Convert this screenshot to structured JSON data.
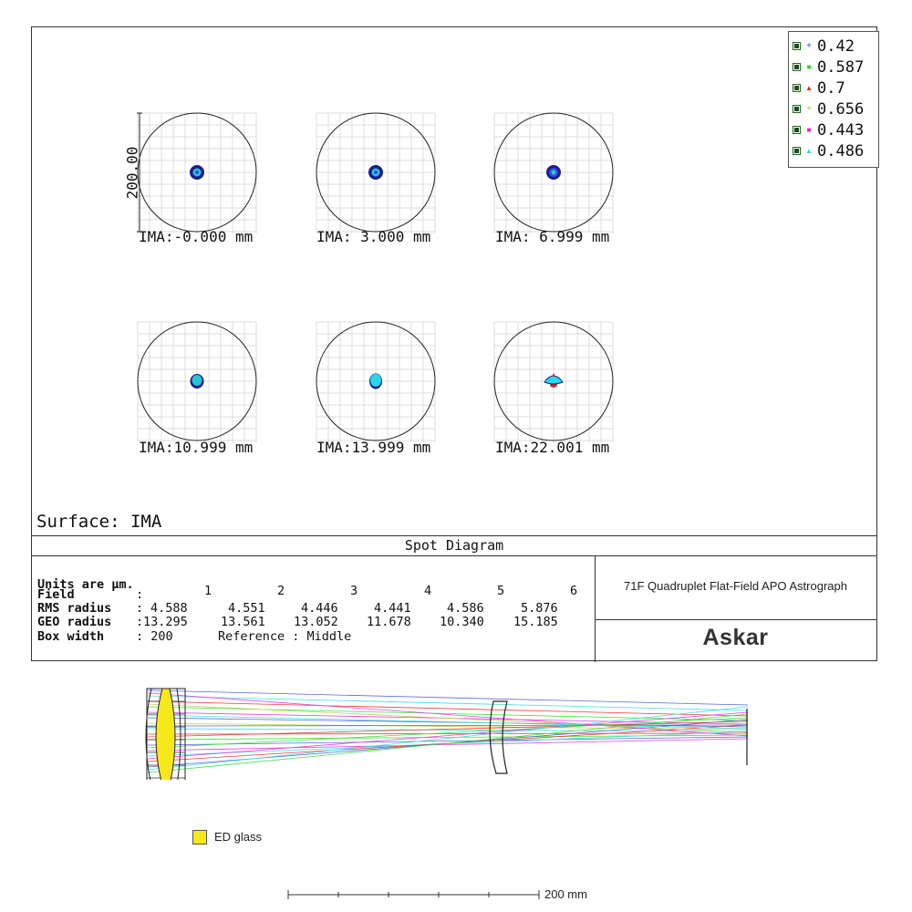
{
  "legend": [
    {
      "mark": "+",
      "color": "#3b4fd6",
      "label": "0.42"
    },
    {
      "mark": "■",
      "color": "#22dd22",
      "label": "0.587"
    },
    {
      "mark": "▲",
      "color": "#e02020",
      "label": "0.7"
    },
    {
      "mark": "+",
      "color": "#b9c93a",
      "label": "0.656"
    },
    {
      "mark": "■",
      "color": "#e020e0",
      "label": "0.443"
    },
    {
      "mark": "▲",
      "color": "#20d8e0",
      "label": "0.486"
    }
  ],
  "scale_bar_label": "200.00",
  "fields": [
    {
      "label": "IMA:-0.000 mm"
    },
    {
      "label": "IMA: 3.000 mm"
    },
    {
      "label": "IMA: 6.999 mm"
    },
    {
      "label": "IMA:10.999 mm"
    },
    {
      "label": "IMA:13.999 mm"
    },
    {
      "label": "IMA:22.001 mm"
    }
  ],
  "surface_label": "Surface: IMA",
  "diagram_title": "Spot Diagram",
  "stats": {
    "units": "Units are µm.",
    "field_label": "Field",
    "field_sep": ":",
    "field_numbers": [
      "1",
      "2",
      "3",
      "4",
      "5",
      "6"
    ],
    "rms_label": "RMS radius",
    "rms_sep": ":",
    "rms_values": [
      "4.588",
      "4.551",
      "4.446",
      "4.441",
      "4.586",
      "5.876"
    ],
    "geo_label": "GEO radius",
    "geo_sep": ":",
    "geo_values": [
      "13.295",
      "13.561",
      "13.052",
      "11.678",
      "10.340",
      "15.185"
    ],
    "box_label": "Box width",
    "box_value": ": 200",
    "reference": "Reference  : Middle"
  },
  "product_name": "71F Quadruplet Flat-Field APO Astrograph",
  "brand": "Askar",
  "ed_glass_label": "ED glass",
  "scale_label": "200 mm",
  "colors": {
    "ed_glass": "#f7e81a",
    "spot_outer": "#1c1c8c",
    "spot_inner": "#27c4d8",
    "spot_red": "#c03020"
  }
}
